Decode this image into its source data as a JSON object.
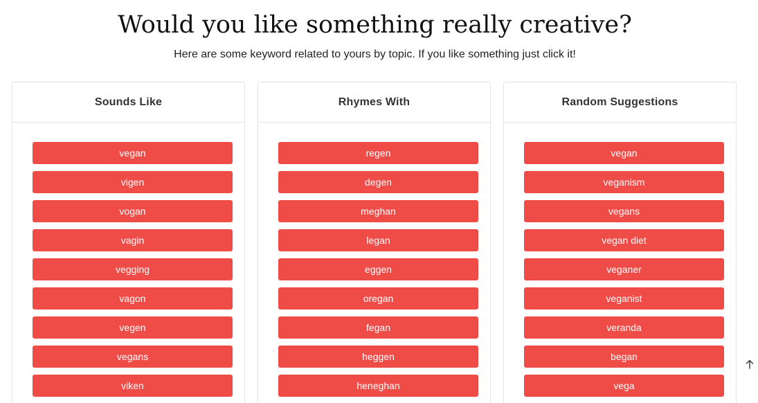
{
  "page": {
    "title": "Would you like something really creative?",
    "subtitle": "Here are some keyword related to yours by topic. If you like something just click it!"
  },
  "columns": [
    {
      "header": "Sounds Like",
      "items": [
        "vegan",
        "vigen",
        "vogan",
        "vagin",
        "vegging",
        "vagon",
        "vegen",
        "vegans",
        "viken"
      ]
    },
    {
      "header": "Rhymes With",
      "items": [
        "regen",
        "degen",
        "meghan",
        "legan",
        "eggen",
        "oregan",
        "fegan",
        "heggen",
        "heneghan"
      ]
    },
    {
      "header": "Random Suggestions",
      "items": [
        "vegan",
        "veganism",
        "vegans",
        "vegan diet",
        "veganer",
        "veganist",
        "veranda",
        "began",
        "vega"
      ]
    }
  ],
  "colors": {
    "button_bg": "#ef4b47",
    "button_text": "#ffffff",
    "card_border": "#e3e3e3"
  },
  "scroll_top": {
    "icon": "arrow-up-icon"
  }
}
